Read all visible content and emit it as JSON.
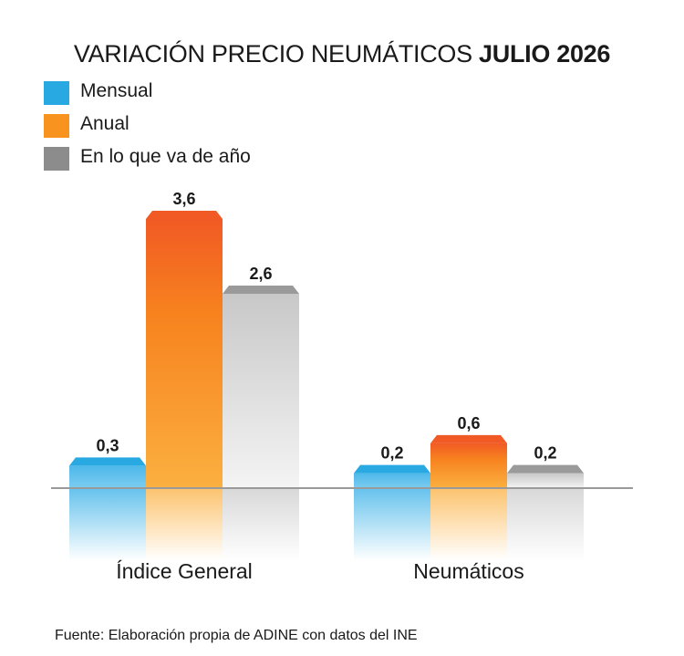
{
  "title": {
    "main": "VARIACIÓN PRECIO NEUMÁTICOS",
    "period": "JULIO  2026"
  },
  "legend": [
    {
      "label": "Mensual",
      "color": "#29a9e1"
    },
    {
      "label": "Anual",
      "color": "#f7931e"
    },
    {
      "label": "En lo que va de año",
      "color": "#8c8c8c"
    }
  ],
  "source": "Fuente: Elaboración propia de ADINE con datos del INE",
  "chart_data": {
    "type": "bar",
    "title": "VARIACIÓN PRECIO NEUMÁTICOS JULIO 2026",
    "categories": [
      "Índice General",
      "Neumáticos"
    ],
    "series": [
      {
        "name": "Mensual",
        "values": [
          0.3,
          0.2
        ],
        "labels": [
          "0,3",
          "0,2"
        ],
        "color": "#29a9e1"
      },
      {
        "name": "Anual",
        "values": [
          3.6,
          0.6
        ],
        "labels": [
          "3,6",
          "0,6"
        ],
        "color": "#f7931e"
      },
      {
        "name": "En lo que va de año",
        "values": [
          2.6,
          0.2
        ],
        "labels": [
          "2,6",
          "0,2"
        ],
        "color": "#8c8c8c"
      }
    ],
    "ylim": [
      0,
      3.6
    ],
    "grid": false,
    "legend_position": "top-left"
  }
}
